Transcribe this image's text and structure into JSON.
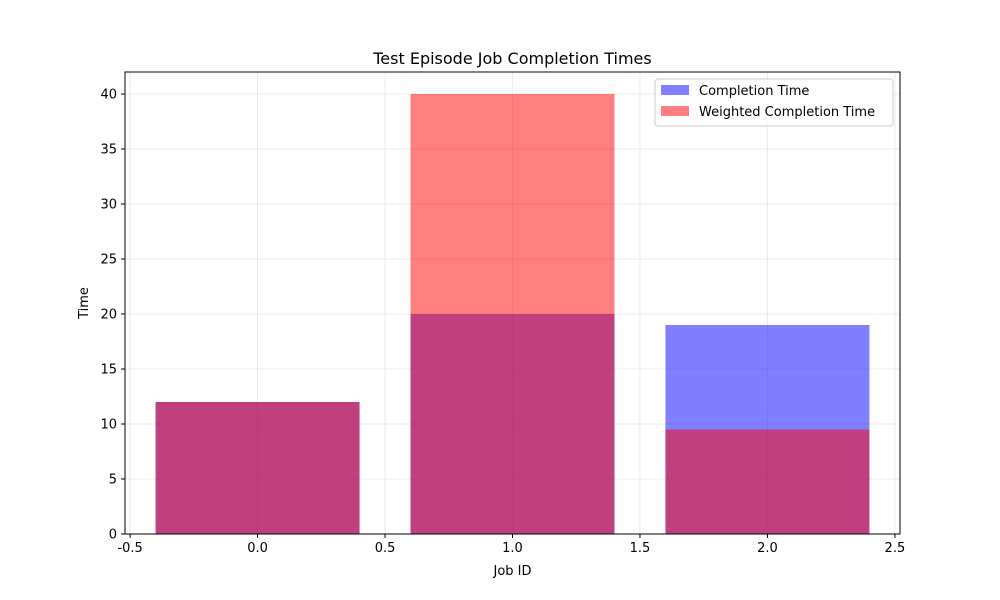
{
  "chart_data": {
    "type": "bar",
    "title": "Test Episode Job Completion Times",
    "xlabel": "Job ID",
    "ylabel": "Time",
    "x": [
      0,
      1,
      2
    ],
    "bar_width": 0.8,
    "xlim": [
      -0.52,
      2.52
    ],
    "ylim": [
      0,
      42
    ],
    "xticks": [
      -0.5,
      0.0,
      0.5,
      1.0,
      1.5,
      2.0,
      2.5
    ],
    "xtick_labels": [
      "-0.5",
      "0.0",
      "0.5",
      "1.0",
      "1.5",
      "2.0",
      "2.5"
    ],
    "yticks": [
      0,
      5,
      10,
      15,
      20,
      25,
      30,
      35,
      40
    ],
    "ytick_labels": [
      "0",
      "5",
      "10",
      "15",
      "20",
      "25",
      "30",
      "35",
      "40"
    ],
    "grid": true,
    "legend_position": "top-right",
    "series": [
      {
        "name": "Completion Time",
        "values": [
          12,
          20,
          19
        ],
        "color": "#0000ff",
        "alpha": 0.5
      },
      {
        "name": "Weighted Completion Time",
        "values": [
          12,
          40,
          9.5
        ],
        "color": "#ff0000",
        "alpha": 0.5
      }
    ]
  }
}
